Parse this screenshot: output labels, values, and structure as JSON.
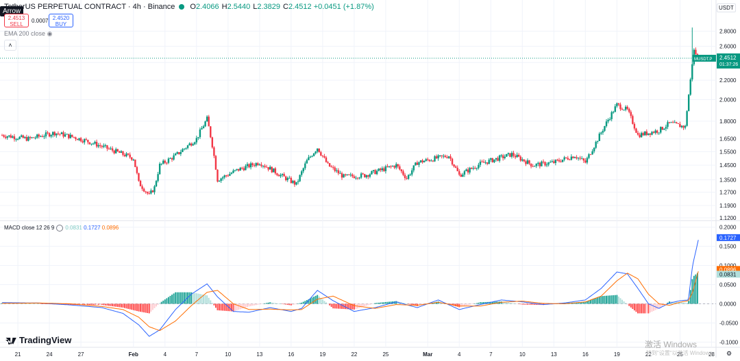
{
  "header": {
    "symbol_title": "TetherUS PERPETUAL CONTRACT · 4h · Binance",
    "tooltip": "Arrow",
    "ohlc": [
      {
        "label": "O",
        "value": "2.4066"
      },
      {
        "label": "H",
        "value": "2.5440"
      },
      {
        "label": "L",
        "value": "2.3829"
      },
      {
        "label": "C",
        "value": "2.4512"
      },
      {
        "label": "",
        "value": "+0.0451 (+1.87%)"
      }
    ],
    "sell_price": "2.4513",
    "sell_label": "SELL",
    "buy_price": "2.4520",
    "buy_label": "BUY",
    "spread": "0.0007",
    "ema_label": "EMA 200 close",
    "collapse_icon": "chevron-up-icon"
  },
  "macd_legend": {
    "label": "MACD close 12 26 9",
    "hist": "0.0831",
    "macd": "0.1727",
    "signal": "0.0896"
  },
  "currency": "USDT",
  "logo_text": "TradingView",
  "watermark_title": "激活 Windows",
  "watermark_sub": "转到\"设置\"以激活 Windows。",
  "colors": {
    "up": "#089981",
    "down": "#f23645",
    "macd": "#2962ff",
    "signal": "#ff6d00",
    "hist_up_strong": "#26a69a",
    "hist_up_weak": "#b2dfdb",
    "hist_down_strong": "#ff5252",
    "hist_down_weak": "#ffcdd2",
    "grid": "#f0f3fa",
    "axis_text": "#131722"
  },
  "chart_data": [
    {
      "type": "candlestick",
      "title": "TetherUS PERPETUAL CONTRACT · 4h · Binance",
      "y_scale": "log",
      "ylim": [
        1.12,
        3.05
      ],
      "y_ticks": [
        "2.8000",
        "2.6000",
        "2.4000",
        "2.2000",
        "2.0000",
        "1.8000",
        "1.6500",
        "1.5500",
        "1.4500",
        "1.3500",
        "1.2700",
        "1.1900",
        "1.1200"
      ],
      "y_tick_values": [
        2.8,
        2.6,
        2.4,
        2.2,
        2.0,
        1.8,
        1.65,
        1.55,
        1.45,
        1.35,
        1.27,
        1.19,
        1.12
      ],
      "x_ticks": [
        "21",
        "24",
        "27",
        "Feb",
        "4",
        "7",
        "10",
        "13",
        "16",
        "19",
        "22",
        "25",
        "Mar",
        "4",
        "7",
        "10",
        "13",
        "16",
        "19",
        "22",
        "25",
        "28"
      ],
      "x_tick_days": [
        -11,
        -8,
        -5,
        0,
        3,
        6,
        9,
        12,
        15,
        18,
        21,
        24,
        28,
        31,
        34,
        37,
        40,
        43,
        46,
        49,
        52,
        55
      ],
      "last_price": {
        "symbol": "MUSDT.P",
        "value": "2.4512",
        "countdown": "01:37:26"
      },
      "close_path": [
        {
          "day": -12.5,
          "close": 1.68
        },
        {
          "day": -10,
          "close": 1.65
        },
        {
          "day": -7.5,
          "close": 1.7
        },
        {
          "day": -5.5,
          "close": 1.66
        },
        {
          "day": -4,
          "close": 1.62
        },
        {
          "day": -2,
          "close": 1.56
        },
        {
          "day": 0,
          "close": 1.5
        },
        {
          "day": 0.5,
          "close": 1.33
        },
        {
          "day": 1.5,
          "close": 1.25
        },
        {
          "day": 2,
          "close": 1.3
        },
        {
          "day": 2.5,
          "close": 1.45
        },
        {
          "day": 4,
          "close": 1.52
        },
        {
          "day": 6,
          "close": 1.65
        },
        {
          "day": 7,
          "close": 1.82
        },
        {
          "day": 7.5,
          "close": 1.6
        },
        {
          "day": 8,
          "close": 1.35
        },
        {
          "day": 10,
          "close": 1.42
        },
        {
          "day": 12,
          "close": 1.47
        },
        {
          "day": 14,
          "close": 1.38
        },
        {
          "day": 15.5,
          "close": 1.32
        },
        {
          "day": 16.5,
          "close": 1.48
        },
        {
          "day": 17.5,
          "close": 1.58
        },
        {
          "day": 18.5,
          "close": 1.45
        },
        {
          "day": 20,
          "close": 1.37
        },
        {
          "day": 22,
          "close": 1.38
        },
        {
          "day": 25,
          "close": 1.45
        },
        {
          "day": 26,
          "close": 1.36
        },
        {
          "day": 27,
          "close": 1.47
        },
        {
          "day": 30,
          "close": 1.52
        },
        {
          "day": 31,
          "close": 1.38
        },
        {
          "day": 33,
          "close": 1.46
        },
        {
          "day": 36,
          "close": 1.53
        },
        {
          "day": 38,
          "close": 1.45
        },
        {
          "day": 40,
          "close": 1.47
        },
        {
          "day": 42,
          "close": 1.52
        },
        {
          "day": 43,
          "close": 1.47
        },
        {
          "day": 44,
          "close": 1.62
        },
        {
          "day": 46,
          "close": 1.95
        },
        {
          "day": 47,
          "close": 1.9
        },
        {
          "day": 48,
          "close": 1.68
        },
        {
          "day": 50,
          "close": 1.72
        },
        {
          "day": 51,
          "close": 1.78
        },
        {
          "day": 52.5,
          "close": 1.75
        },
        {
          "day": 53,
          "close": 2.2
        },
        {
          "day": 53.3,
          "close": 2.55
        },
        {
          "day": 53.8,
          "close": 2.45
        }
      ],
      "ema200_visible": false
    },
    {
      "type": "macd",
      "title": "MACD close 12 26 9",
      "ylim": [
        -0.11,
        0.21
      ],
      "y_ticks": [
        "0.2000",
        "0.1500",
        "0.1000",
        "0.0500",
        "0.0000",
        "-0.0500",
        "-0.1000"
      ],
      "y_tick_values": [
        0.2,
        0.15,
        0.1,
        0.05,
        0.0,
        -0.05,
        -0.1
      ],
      "series": [
        {
          "name": "MACD",
          "last": "0.1727",
          "points": [
            {
              "day": -12.5,
              "v": 0.003
            },
            {
              "day": -9,
              "v": 0.002
            },
            {
              "day": -6,
              "v": -0.003
            },
            {
              "day": -3,
              "v": -0.01
            },
            {
              "day": -1,
              "v": -0.025
            },
            {
              "day": 0.5,
              "v": -0.055
            },
            {
              "day": 1.5,
              "v": -0.085
            },
            {
              "day": 2.5,
              "v": -0.068
            },
            {
              "day": 4,
              "v": -0.015
            },
            {
              "day": 5.5,
              "v": 0.025
            },
            {
              "day": 7,
              "v": 0.052
            },
            {
              "day": 8,
              "v": 0.018
            },
            {
              "day": 9.5,
              "v": -0.02
            },
            {
              "day": 11,
              "v": -0.022
            },
            {
              "day": 13,
              "v": -0.01
            },
            {
              "day": 15,
              "v": -0.02
            },
            {
              "day": 16,
              "v": -0.012
            },
            {
              "day": 17.5,
              "v": 0.035
            },
            {
              "day": 19,
              "v": 0.008
            },
            {
              "day": 21,
              "v": -0.02
            },
            {
              "day": 23,
              "v": -0.01
            },
            {
              "day": 25,
              "v": 0.005
            },
            {
              "day": 27,
              "v": -0.01
            },
            {
              "day": 29,
              "v": 0.01
            },
            {
              "day": 31,
              "v": -0.015
            },
            {
              "day": 33,
              "v": -0.002
            },
            {
              "day": 35,
              "v": 0.01
            },
            {
              "day": 37,
              "v": 0.005
            },
            {
              "day": 39,
              "v": -0.002
            },
            {
              "day": 41,
              "v": 0.002
            },
            {
              "day": 43,
              "v": 0.01
            },
            {
              "day": 44.5,
              "v": 0.04
            },
            {
              "day": 46,
              "v": 0.083
            },
            {
              "day": 47,
              "v": 0.078
            },
            {
              "day": 48,
              "v": 0.04
            },
            {
              "day": 49,
              "v": 0.0
            },
            {
              "day": 50,
              "v": -0.012
            },
            {
              "day": 51,
              "v": 0.002
            },
            {
              "day": 52,
              "v": 0.008
            },
            {
              "day": 52.8,
              "v": 0.01
            },
            {
              "day": 53.2,
              "v": 0.1
            },
            {
              "day": 53.8,
              "v": 0.1727
            }
          ]
        },
        {
          "name": "Signal",
          "last": "0.0896",
          "points": [
            {
              "day": -12.5,
              "v": 0.001
            },
            {
              "day": -9,
              "v": 0.002
            },
            {
              "day": -6,
              "v": 0.0
            },
            {
              "day": -3,
              "v": -0.007
            },
            {
              "day": -1,
              "v": -0.015
            },
            {
              "day": 0.5,
              "v": -0.035
            },
            {
              "day": 1.5,
              "v": -0.06
            },
            {
              "day": 2.5,
              "v": -0.07
            },
            {
              "day": 4,
              "v": -0.045
            },
            {
              "day": 5.5,
              "v": -0.005
            },
            {
              "day": 7,
              "v": 0.03
            },
            {
              "day": 8,
              "v": 0.035
            },
            {
              "day": 9.5,
              "v": 0.0
            },
            {
              "day": 11,
              "v": -0.015
            },
            {
              "day": 13,
              "v": -0.014
            },
            {
              "day": 15,
              "v": -0.016
            },
            {
              "day": 16,
              "v": -0.015
            },
            {
              "day": 17.5,
              "v": 0.012
            },
            {
              "day": 19,
              "v": 0.02
            },
            {
              "day": 21,
              "v": -0.005
            },
            {
              "day": 23,
              "v": -0.012
            },
            {
              "day": 25,
              "v": -0.002
            },
            {
              "day": 27,
              "v": -0.004
            },
            {
              "day": 29,
              "v": 0.004
            },
            {
              "day": 31,
              "v": -0.006
            },
            {
              "day": 33,
              "v": -0.006
            },
            {
              "day": 35,
              "v": 0.004
            },
            {
              "day": 37,
              "v": 0.007
            },
            {
              "day": 39,
              "v": 0.001
            },
            {
              "day": 41,
              "v": 0.0
            },
            {
              "day": 43,
              "v": 0.005
            },
            {
              "day": 44.5,
              "v": 0.02
            },
            {
              "day": 46,
              "v": 0.06
            },
            {
              "day": 47,
              "v": 0.08
            },
            {
              "day": 48,
              "v": 0.065
            },
            {
              "day": 49,
              "v": 0.025
            },
            {
              "day": 50,
              "v": 0.0
            },
            {
              "day": 51,
              "v": -0.004
            },
            {
              "day": 52,
              "v": 0.004
            },
            {
              "day": 52.8,
              "v": 0.008
            },
            {
              "day": 53.2,
              "v": 0.03
            },
            {
              "day": 53.8,
              "v": 0.0896
            }
          ]
        }
      ],
      "histogram_last": "0.0831"
    }
  ]
}
